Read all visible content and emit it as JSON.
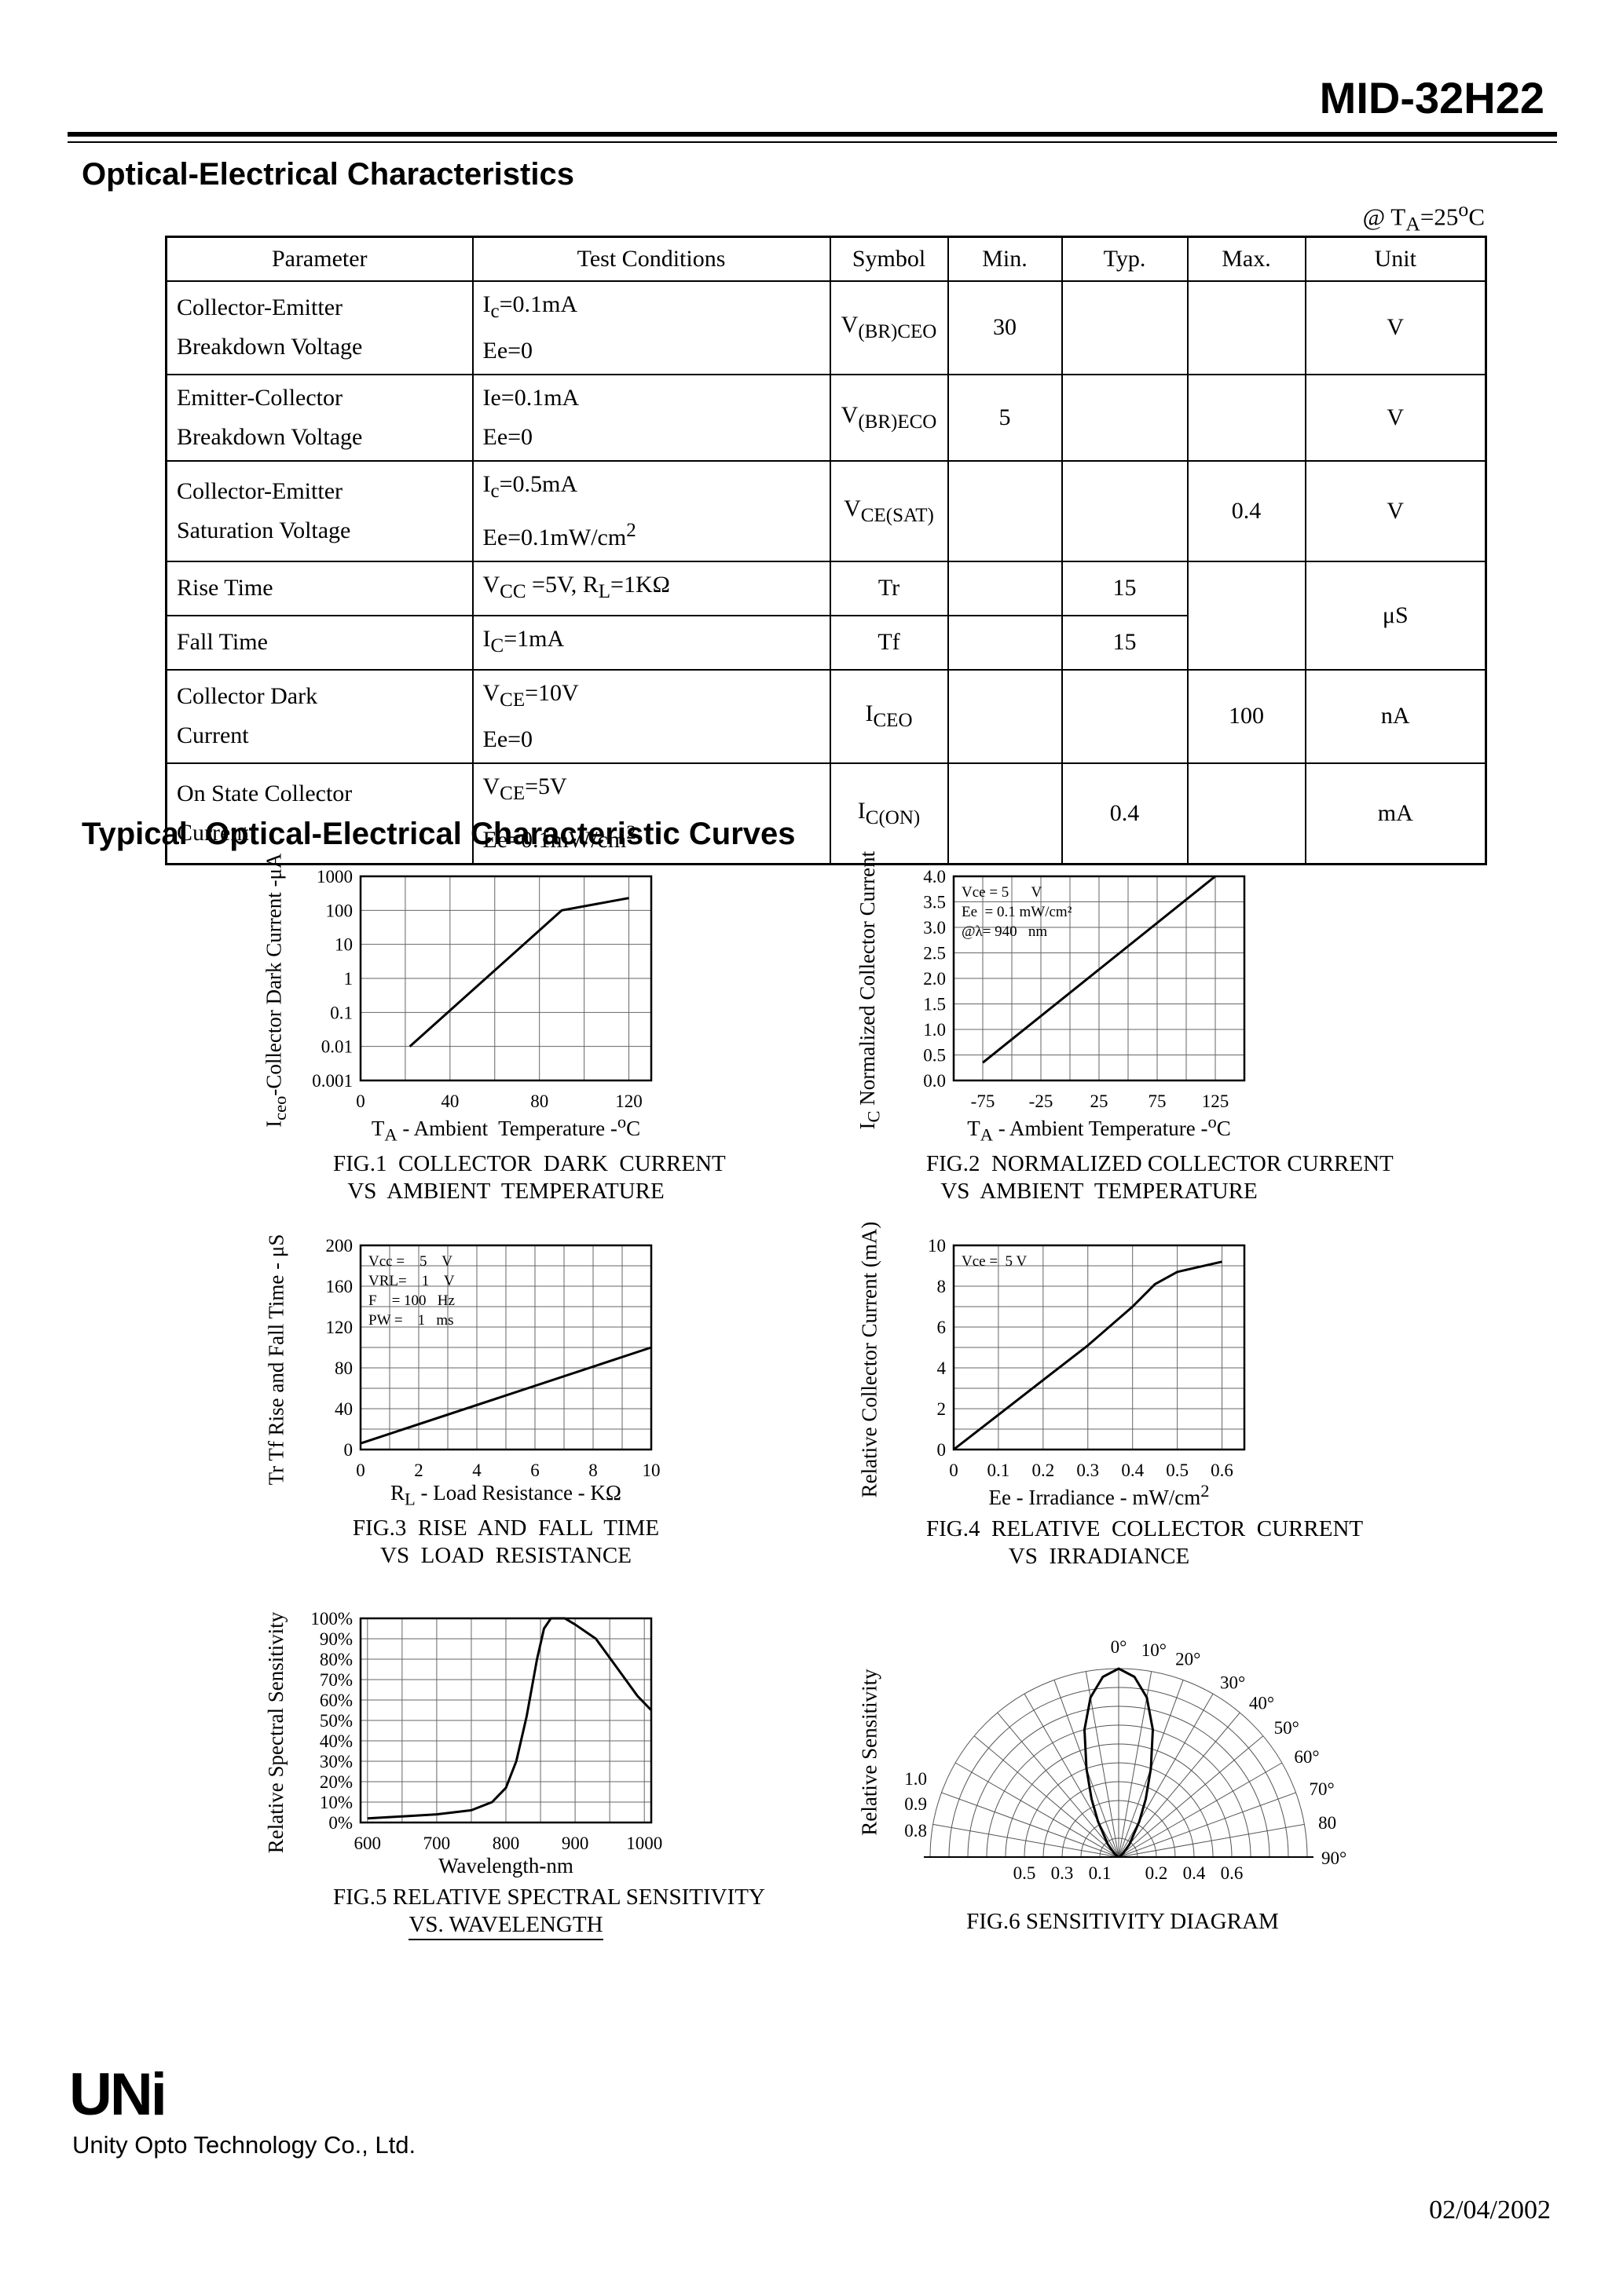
{
  "page": {
    "title": "MID-32H22",
    "section1": "Optical-Electrical Characteristics",
    "temp_note": "@ T~A~=25^o^C",
    "section2": "Typical  Optical-Electrical Characteristic Curves",
    "footer": {
      "logo": "UNi",
      "company": "Unity Opto Technology Co., Ltd.",
      "date": "02/04/2002"
    }
  },
  "table": {
    "headers": [
      "Parameter",
      "Test Conditions",
      "Symbol",
      "Min.",
      "Typ.",
      "Max.",
      "Unit"
    ],
    "rows": [
      {
        "parameter": "Collector-Emitter\nBreakdown Voltage",
        "conditions": "I~c~=0.1mA\nEe=0",
        "symbol": "V~(BR)CEO~",
        "min": "30",
        "typ": "",
        "max": "",
        "unit": "V"
      },
      {
        "parameter": "Emitter-Collector\nBreakdown Voltage",
        "conditions": "Ie=0.1mA\nEe=0",
        "symbol": "V~(BR)ECO~",
        "min": "5",
        "typ": "",
        "max": "",
        "unit": "V"
      },
      {
        "parameter": "Collector-Emitter\nSaturation Voltage",
        "conditions": "I~c~=0.5mA\nEe=0.1mW/cm^2^",
        "symbol": "V~CE(SAT)~",
        "min": "",
        "typ": "",
        "max": "0.4",
        "unit": "V"
      },
      {
        "parameter": "Rise Time",
        "conditions": "V~CC~ =5V, R~L~=1KΩ",
        "symbol": "Tr",
        "min": "",
        "typ": "15",
        "max": "",
        "unit": "μS"
      },
      {
        "parameter": "Fall Time",
        "conditions": "I~C~=1mA",
        "symbol": "Tf",
        "min": "",
        "typ": "15"
      },
      {
        "parameter": "Collector Dark\nCurrent",
        "conditions": "V~CE~=10V\nEe=0",
        "symbol": "I~CEO~",
        "min": "",
        "typ": "",
        "max": "100",
        "unit": "nA"
      },
      {
        "parameter": "On State Collector\nCurrent",
        "conditions": "V~CE~=5V\nEe=0.1mW/cm^2^",
        "symbol": "I~C(ON)~",
        "min": "",
        "typ": "0.4",
        "max": "",
        "unit": "mA"
      }
    ]
  },
  "chart_data": [
    {
      "id": "fig1",
      "type": "line",
      "caption1": "FIG.1  COLLECTOR  DARK  CURRENT",
      "caption2": "VS  AMBIENT  TEMPERATURE",
      "ylabel": "I~ceo~-Collector Dark Current -μA",
      "xlabel": "T~A~ - Ambient  Temperature -^o^C",
      "xlim": [
        0,
        130
      ],
      "ylim": [
        0.001,
        1000
      ],
      "yscale": "log",
      "grid": true,
      "xticks": [
        {
          "v": 0,
          "l": "0"
        },
        {
          "v": 40,
          "l": "40"
        },
        {
          "v": 80,
          "l": "80"
        },
        {
          "v": 120,
          "l": "120"
        }
      ],
      "yticks": [
        {
          "v": 1000,
          "l": "1000"
        },
        {
          "v": 100,
          "l": "100"
        },
        {
          "v": 10,
          "l": "10"
        },
        {
          "v": 1,
          "l": "1"
        },
        {
          "v": 0.1,
          "l": "0.1"
        },
        {
          "v": 0.01,
          "l": "0.01"
        },
        {
          "v": 0.001,
          "l": "0.001"
        }
      ],
      "xgrid": [
        20,
        40,
        60,
        80,
        100,
        120
      ],
      "ygrid": [
        0.01,
        0.1,
        1,
        10,
        100
      ],
      "points": [
        [
          22,
          0.01
        ],
        [
          90,
          100
        ],
        [
          120,
          230
        ]
      ]
    },
    {
      "id": "fig2",
      "type": "line",
      "caption1": "FIG.2  NORMALIZED COLLECTOR CURRENT",
      "caption2": "VS  AMBIENT  TEMPERATURE",
      "ylabel": "I~C~ Normalized Collector Current",
      "xlabel": "T~A~ - Ambient Temperature -^o^C",
      "xlim": [
        -100,
        150
      ],
      "ylim": [
        0,
        4
      ],
      "yscale": "linear",
      "grid": true,
      "xticks": [
        {
          "v": -75,
          "l": "-75"
        },
        {
          "v": -25,
          "l": "-25"
        },
        {
          "v": 25,
          "l": "25"
        },
        {
          "v": 75,
          "l": "75"
        },
        {
          "v": 125,
          "l": "125"
        }
      ],
      "yticks": [
        {
          "v": 4,
          "l": "4.0"
        },
        {
          "v": 3.5,
          "l": "3.5"
        },
        {
          "v": 3,
          "l": "3.0"
        },
        {
          "v": 2.5,
          "l": "2.5"
        },
        {
          "v": 2,
          "l": "2.0"
        },
        {
          "v": 1.5,
          "l": "1.5"
        },
        {
          "v": 1,
          "l": "1.0"
        },
        {
          "v": 0.5,
          "l": "0.5"
        },
        {
          "v": 0,
          "l": "0.0"
        }
      ],
      "xgrid": [
        -75,
        -50,
        -25,
        0,
        25,
        50,
        75,
        100,
        125
      ],
      "ygrid": [
        0.5,
        1,
        1.5,
        2,
        2.5,
        3,
        3.5
      ],
      "points": [
        [
          -75,
          0.35
        ],
        [
          125,
          4.0
        ]
      ],
      "annotations": [
        "Vce = 5      V",
        "Ee  = 0.1 mW/cm²",
        "@λ= 940   nm"
      ]
    },
    {
      "id": "fig3",
      "type": "line",
      "caption1": "FIG.3  RISE  AND  FALL  TIME",
      "caption2": "VS  LOAD  RESISTANCE",
      "ylabel": "Tr Tf Rise and Fall Time - μS",
      "xlabel": "R~L~ - Load Resistance - KΩ",
      "xlim": [
        0,
        10
      ],
      "ylim": [
        0,
        200
      ],
      "yscale": "linear",
      "grid": true,
      "xticks": [
        {
          "v": 0,
          "l": "0"
        },
        {
          "v": 2,
          "l": "2"
        },
        {
          "v": 4,
          "l": "4"
        },
        {
          "v": 6,
          "l": "6"
        },
        {
          "v": 8,
          "l": "8"
        },
        {
          "v": 10,
          "l": "10"
        }
      ],
      "yticks": [
        {
          "v": 200,
          "l": "200"
        },
        {
          "v": 160,
          "l": "160"
        },
        {
          "v": 120,
          "l": "120"
        },
        {
          "v": 80,
          "l": "80"
        },
        {
          "v": 40,
          "l": "40"
        },
        {
          "v": 0,
          "l": "0"
        }
      ],
      "xgrid": [
        1,
        2,
        3,
        4,
        5,
        6,
        7,
        8,
        9
      ],
      "ygrid": [
        20,
        40,
        60,
        80,
        100,
        120,
        140,
        160,
        180
      ],
      "points": [
        [
          0,
          6
        ],
        [
          10,
          100
        ]
      ],
      "annotations": [
        "Vcc =    5    V",
        "VRL=    1    V",
        "F    = 100   Hz",
        "PW =    1   ms"
      ]
    },
    {
      "id": "fig4",
      "type": "line",
      "caption1": "FIG.4  RELATIVE  COLLECTOR  CURRENT",
      "caption2": "VS  IRRADIANCE",
      "ylabel": "Relative Collector  Current (mA)",
      "xlabel": "Ee - Irradiance - mW/cm^2^",
      "xlim": [
        0,
        0.65
      ],
      "ylim": [
        0,
        10
      ],
      "yscale": "linear",
      "grid": true,
      "xticks": [
        {
          "v": 0,
          "l": "0"
        },
        {
          "v": 0.1,
          "l": "0.1"
        },
        {
          "v": 0.2,
          "l": "0.2"
        },
        {
          "v": 0.3,
          "l": "0.3"
        },
        {
          "v": 0.4,
          "l": "0.4"
        },
        {
          "v": 0.5,
          "l": "0.5"
        },
        {
          "v": 0.6,
          "l": "0.6"
        }
      ],
      "yticks": [
        {
          "v": 10,
          "l": "10"
        },
        {
          "v": 8,
          "l": "8"
        },
        {
          "v": 6,
          "l": "6"
        },
        {
          "v": 4,
          "l": "4"
        },
        {
          "v": 2,
          "l": "2"
        },
        {
          "v": 0,
          "l": "0"
        }
      ],
      "xgrid": [
        0.1,
        0.2,
        0.3,
        0.4,
        0.5,
        0.6
      ],
      "ygrid": [
        1,
        2,
        3,
        4,
        5,
        6,
        7,
        8,
        9
      ],
      "points": [
        [
          0,
          0
        ],
        [
          0.1,
          1.7
        ],
        [
          0.2,
          3.4
        ],
        [
          0.3,
          5.1
        ],
        [
          0.4,
          7.0
        ],
        [
          0.45,
          8.1
        ],
        [
          0.5,
          8.7
        ],
        [
          0.6,
          9.2
        ]
      ],
      "annotations": [
        "Vce =  5 V"
      ]
    },
    {
      "id": "fig5",
      "type": "line",
      "caption1": "FIG.5 RELATIVE SPECTRAL SENSITIVITY",
      "caption2": "VS. WAVELENGTH",
      "ylabel": "Relative Spectral Sensitivity",
      "xlabel": "Wavelength-nm",
      "xlim": [
        590,
        1010
      ],
      "ylim": [
        0,
        100
      ],
      "yscale": "linear",
      "grid": true,
      "xticks": [
        {
          "v": 600,
          "l": "600"
        },
        {
          "v": 700,
          "l": "700"
        },
        {
          "v": 800,
          "l": "800"
        },
        {
          "v": 900,
          "l": "900"
        },
        {
          "v": 1000,
          "l": "1000"
        }
      ],
      "yticks": [
        {
          "v": 100,
          "l": "100%"
        },
        {
          "v": 90,
          "l": "90%"
        },
        {
          "v": 80,
          "l": "80%"
        },
        {
          "v": 70,
          "l": "70%"
        },
        {
          "v": 60,
          "l": "60%"
        },
        {
          "v": 50,
          "l": "50%"
        },
        {
          "v": 40,
          "l": "40%"
        },
        {
          "v": 30,
          "l": "30%"
        },
        {
          "v": 20,
          "l": "20%"
        },
        {
          "v": 10,
          "l": "10%"
        },
        {
          "v": 0,
          "l": "0%"
        }
      ],
      "xgrid": [
        600,
        650,
        700,
        750,
        800,
        850,
        900,
        950,
        1000
      ],
      "ygrid": [
        10,
        20,
        30,
        40,
        50,
        60,
        70,
        80,
        90
      ],
      "points": [
        [
          600,
          2
        ],
        [
          650,
          3
        ],
        [
          700,
          4
        ],
        [
          750,
          6
        ],
        [
          780,
          10
        ],
        [
          800,
          17
        ],
        [
          815,
          30
        ],
        [
          830,
          52
        ],
        [
          845,
          80
        ],
        [
          855,
          95
        ],
        [
          865,
          100
        ],
        [
          885,
          100
        ],
        [
          900,
          97
        ],
        [
          930,
          90
        ],
        [
          960,
          76
        ],
        [
          990,
          62
        ],
        [
          1010,
          55
        ]
      ]
    },
    {
      "id": "fig6",
      "type": "polar",
      "caption1": "FIG.6 SENSITIVITY DIAGRAM",
      "ylabel": "Relative Sensitivity",
      "angle_labels": [
        "0°",
        "10°",
        "20°",
        "30°",
        "40°",
        "50°",
        "60°",
        "70°",
        "80",
        "90°"
      ],
      "left_labels": [
        "1.0",
        "0.9",
        "0.8"
      ],
      "bottom_labels": [
        "0.5",
        "0.3",
        "0.1",
        "0.2",
        "0.4",
        "0.6"
      ],
      "lobe_points": [
        [
          -60,
          0.01
        ],
        [
          -50,
          0.03
        ],
        [
          -40,
          0.09
        ],
        [
          -30,
          0.22
        ],
        [
          -25,
          0.34
        ],
        [
          -20,
          0.5
        ],
        [
          -15,
          0.7
        ],
        [
          -10,
          0.86
        ],
        [
          -5,
          0.96
        ],
        [
          0,
          1.0
        ],
        [
          5,
          0.96
        ],
        [
          10,
          0.86
        ],
        [
          15,
          0.7
        ],
        [
          20,
          0.5
        ],
        [
          25,
          0.34
        ],
        [
          30,
          0.22
        ],
        [
          40,
          0.09
        ],
        [
          50,
          0.03
        ],
        [
          60,
          0.01
        ]
      ]
    }
  ]
}
